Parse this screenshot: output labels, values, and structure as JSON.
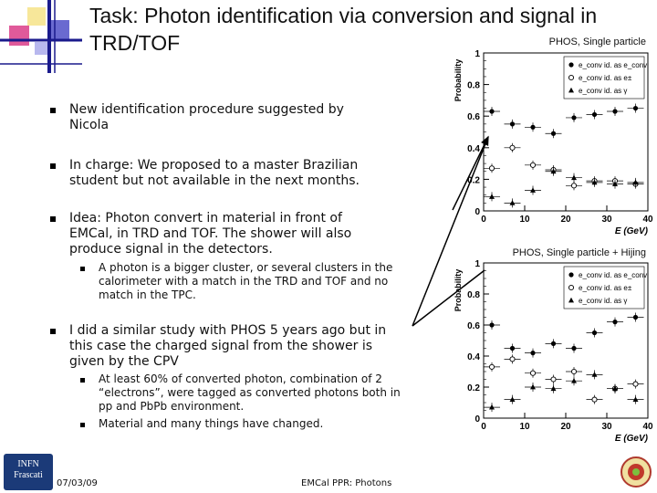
{
  "slide": {
    "title": "Task: Photon identification via conversion and signal in TRD/TOF",
    "bullets": [
      {
        "text": "New identification procedure suggested by Nicola"
      },
      {
        "text": "In charge: We proposed to a master Brazilian student but not available in the next months."
      },
      {
        "text": "Idea: Photon convert in material in front of EMCal, in TRD and TOF. The shower will also produce signal in the detectors.",
        "sub": [
          "A photon is a bigger cluster, or several clusters in the calorimeter with a match in the TRD and TOF and no match in the TPC."
        ]
      },
      {
        "text": "I did a similar study with PHOS 5 years ago but in this case the charged signal from the shower is given by the CPV",
        "sub": [
          "At least 60% of converted photon, combination of 2 “electrons”, were tagged as converted photons both in pp and PbPb environment.",
          "Material and many things have changed."
        ]
      }
    ],
    "footer": {
      "date": "07/03/09",
      "center": "EMCal PPR: Photons"
    },
    "logo": {
      "line1": "INFN",
      "line2": "Frascati"
    }
  },
  "chart_data": [
    {
      "type": "scatter",
      "title": "PHOS, Single particle",
      "xlabel": "E (GeV)",
      "ylabel": "Probability",
      "xlim": [
        0,
        40
      ],
      "ylim": [
        0,
        1
      ],
      "xticks": [
        "0",
        "10",
        "20",
        "30",
        "40"
      ],
      "yticks": [
        "0",
        "0.2",
        "0.4",
        "0.6",
        "0.8",
        "1"
      ],
      "legend_position": "top-right",
      "series": [
        {
          "name": "e_conv id. as e_conv",
          "marker": "filled-circle",
          "x": [
            2,
            7,
            12,
            17,
            22,
            27,
            32,
            37
          ],
          "y": [
            0.63,
            0.55,
            0.53,
            0.49,
            0.59,
            0.61,
            0.63,
            0.65
          ]
        },
        {
          "name": "e_conv id. as e±",
          "marker": "open-circle",
          "x": [
            2,
            7,
            12,
            17,
            22,
            27,
            32,
            37
          ],
          "y": [
            0.27,
            0.4,
            0.29,
            0.26,
            0.16,
            0.19,
            0.19,
            0.17
          ]
        },
        {
          "name": "e_conv id. as γ",
          "marker": "triangle",
          "x": [
            2,
            7,
            12,
            17,
            22,
            27,
            32,
            37
          ],
          "y": [
            0.09,
            0.05,
            0.13,
            0.25,
            0.21,
            0.18,
            0.17,
            0.18
          ]
        }
      ]
    },
    {
      "type": "scatter",
      "title": "PHOS, Single particle + Hijing",
      "xlabel": "E (GeV)",
      "ylabel": "Probability",
      "xlim": [
        0,
        40
      ],
      "ylim": [
        0,
        1
      ],
      "xticks": [
        "0",
        "10",
        "20",
        "30",
        "40"
      ],
      "yticks": [
        "0",
        "0.2",
        "0.4",
        "0.6",
        "0.8",
        "1"
      ],
      "legend_position": "top-right",
      "series": [
        {
          "name": "e_conv id. as e_conv",
          "marker": "filled-circle",
          "x": [
            2,
            7,
            12,
            17,
            22,
            27,
            32,
            37
          ],
          "y": [
            0.6,
            0.45,
            0.42,
            0.48,
            0.45,
            0.55,
            0.62,
            0.65
          ]
        },
        {
          "name": "e_conv id. as e±",
          "marker": "open-circle",
          "x": [
            2,
            7,
            12,
            17,
            22,
            27,
            32,
            37
          ],
          "y": [
            0.33,
            0.38,
            0.29,
            0.25,
            0.3,
            0.12,
            0.19,
            0.22
          ]
        },
        {
          "name": "e_conv id. as γ",
          "marker": "triangle",
          "x": [
            2,
            7,
            12,
            17,
            22,
            27,
            32,
            37
          ],
          "y": [
            0.07,
            0.12,
            0.2,
            0.19,
            0.24,
            0.28,
            0.19,
            0.12
          ]
        }
      ]
    }
  ]
}
